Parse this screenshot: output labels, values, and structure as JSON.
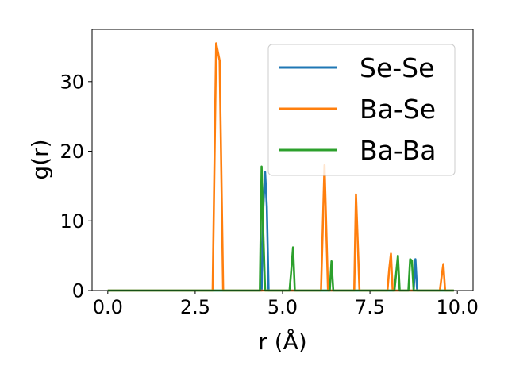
{
  "chart_data": {
    "type": "line",
    "title": "",
    "xlabel": "r (Å)",
    "ylabel": "g(r)",
    "xlim": [
      -0.45,
      10.45
    ],
    "ylim": [
      0,
      37.5
    ],
    "xticks": [
      0.0,
      2.5,
      5.0,
      7.5,
      10.0
    ],
    "xtick_labels": [
      "0.0",
      "2.5",
      "5.0",
      "7.5",
      "10.0"
    ],
    "yticks": [
      0,
      10,
      20,
      30
    ],
    "ytick_labels": [
      "0",
      "10",
      "20",
      "30"
    ],
    "grid": false,
    "legend": "top-right",
    "series": [
      {
        "name": "Se-Se",
        "color": "#1f77b4",
        "x": [
          0.0,
          4.4,
          4.45,
          4.5,
          4.55,
          4.6,
          8.75,
          8.8,
          8.85,
          9.9
        ],
        "y": [
          0,
          0,
          12.0,
          17.0,
          12.0,
          0,
          0,
          4.5,
          0,
          0
        ]
      },
      {
        "name": "Ba-Se",
        "color": "#ff7f0e",
        "x": [
          0.0,
          3.0,
          3.1,
          3.2,
          3.3,
          6.1,
          6.15,
          6.2,
          6.25,
          6.3,
          7.05,
          7.1,
          7.15,
          7.2,
          8.0,
          8.05,
          8.1,
          8.15,
          9.5,
          9.55,
          9.6,
          9.65,
          9.9
        ],
        "y": [
          0,
          0,
          35.5,
          33.0,
          0,
          0,
          9.0,
          18.0,
          9.0,
          0,
          0,
          13.8,
          7.0,
          0,
          0,
          3.0,
          5.3,
          0,
          0,
          2.0,
          3.8,
          0,
          0
        ]
      },
      {
        "name": "Ba-Ba",
        "color": "#2ca02c",
        "x": [
          0.0,
          4.35,
          4.4,
          4.45,
          4.5,
          5.2,
          5.25,
          5.3,
          5.35,
          6.35,
          6.4,
          6.45,
          8.2,
          8.25,
          8.3,
          8.35,
          8.6,
          8.65,
          8.7,
          8.75,
          9.9
        ],
        "y": [
          0,
          0,
          17.8,
          8.0,
          0,
          0,
          3.0,
          6.2,
          0,
          0,
          4.2,
          0,
          0,
          2.5,
          5.0,
          0,
          0,
          4.5,
          4.3,
          0,
          0
        ]
      }
    ]
  }
}
